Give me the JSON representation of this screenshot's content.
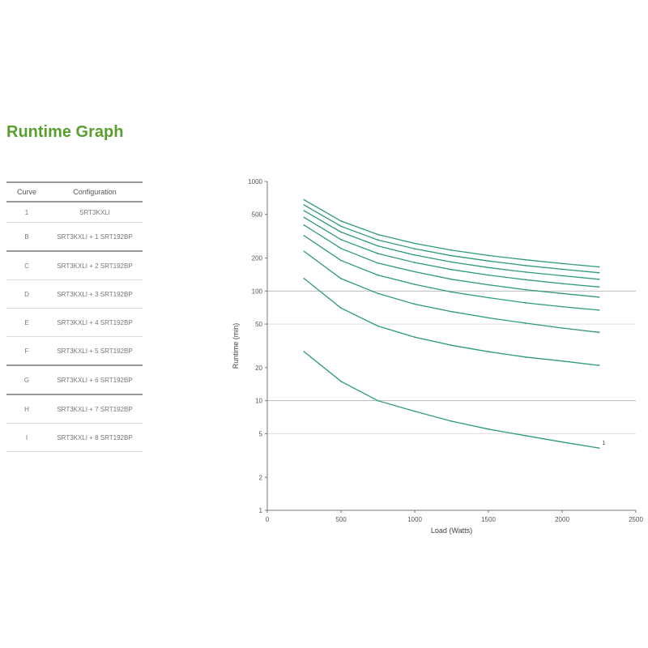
{
  "page": {
    "title": "Runtime Graph"
  },
  "table": {
    "headers": [
      "Curve",
      "Configuration"
    ],
    "rows": [
      {
        "curve": "1",
        "config": "SRT3KXLI"
      },
      {
        "curve": "B",
        "config": "SRT3KXLI + 1 SRT192BP"
      },
      {
        "curve": "C",
        "config": "SRT3KXLI + 2 SRT192BP"
      },
      {
        "curve": "D",
        "config": "SRT3KXLI + 3 SRT192BP"
      },
      {
        "curve": "E",
        "config": "SRT3KXLI + 4 SRT192BP"
      },
      {
        "curve": "F",
        "config": "SRT3KXLI + 5 SRT192BP"
      },
      {
        "curve": "G",
        "config": "SRT3KXLI + 6 SRT192BP"
      },
      {
        "curve": "H",
        "config": "SRT3KXLI + 7 SRT192BP"
      },
      {
        "curve": "I",
        "config": "SRT3KXLI + 8 SRT192BP"
      }
    ],
    "group_starts": [
      2,
      6,
      7
    ]
  },
  "colors": {
    "accent": "#5a9e2f",
    "curve": "#2e9c70",
    "grid": "#bbbbbb",
    "axis": "#777777"
  },
  "chart_data": {
    "type": "line",
    "title": "",
    "xlabel": "Load (Watts)",
    "ylabel": "Runtime (min)",
    "x_ticks": [
      "0",
      "500",
      "1000",
      "1500",
      "2000",
      "2500"
    ],
    "y_ticks": [
      "1",
      "2",
      "5",
      "10",
      "20",
      "50",
      "100",
      "200",
      "500",
      "1000"
    ],
    "xlim": [
      0,
      2500
    ],
    "ylim": [
      1,
      1000
    ],
    "y_scale": "log",
    "grid": "horizontal",
    "x_points": [
      250,
      500,
      750,
      1000,
      1250,
      1500,
      1750,
      2000,
      2250
    ],
    "series": [
      {
        "end_label": "1",
        "values": [
          28,
          15,
          10,
          8,
          6.5,
          5.5,
          4.8,
          4.2,
          3.7
        ]
      },
      {
        "end_label": "",
        "values": [
          130,
          70,
          48,
          38,
          32,
          28,
          25,
          23,
          21
        ]
      },
      {
        "end_label": "",
        "values": [
          230,
          130,
          95,
          76,
          65,
          57,
          51,
          46,
          42
        ]
      },
      {
        "end_label": "",
        "values": [
          320,
          190,
          140,
          115,
          98,
          87,
          78,
          72,
          67
        ]
      },
      {
        "end_label": "",
        "values": [
          400,
          245,
          180,
          150,
          128,
          114,
          103,
          95,
          88
        ]
      },
      {
        "end_label": "",
        "values": [
          470,
          295,
          220,
          182,
          157,
          140,
          127,
          117,
          109
        ]
      },
      {
        "end_label": "",
        "values": [
          540,
          345,
          258,
          213,
          184,
          164,
          149,
          138,
          128
        ]
      },
      {
        "end_label": "",
        "values": [
          610,
          390,
          293,
          243,
          210,
          188,
          171,
          158,
          147
        ]
      },
      {
        "end_label": "",
        "values": [
          680,
          435,
          328,
          272,
          236,
          211,
          193,
          178,
          166
        ]
      }
    ]
  }
}
